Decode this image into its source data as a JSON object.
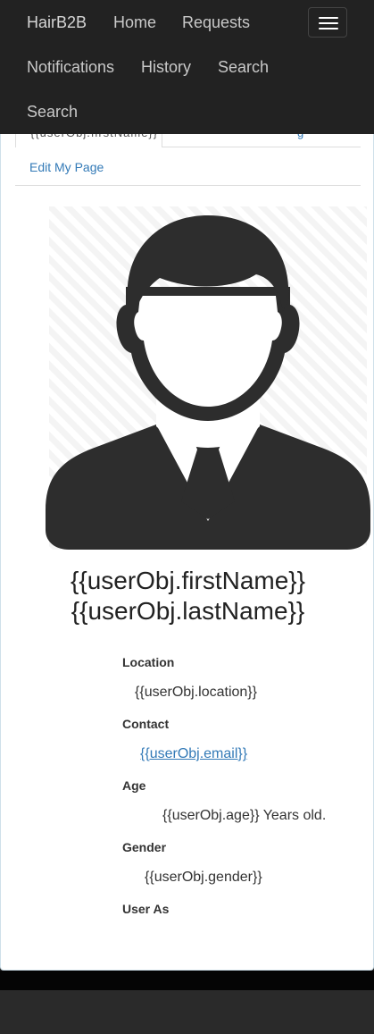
{
  "navbar": {
    "brand": "HairB2B",
    "items": [
      "Home",
      "Requests",
      "Notifications",
      "History",
      "Search",
      "Search"
    ]
  },
  "tabs": {
    "active_label": "{{userObj.firstName}}",
    "other_label": "g"
  },
  "edit_link": "Edit My Page",
  "profile": {
    "first_name": "{{userObj.firstName}}",
    "last_name": "{{userObj.lastName}}",
    "location_label": "Location",
    "location_value": "{{userObj.location}}",
    "contact_label": "Contact",
    "contact_value": "{{userObj.email}}",
    "age_label": "Age",
    "age_value": "{{userObj.age}} Years old.",
    "gender_label": "Gender",
    "gender_value": "{{userObj.gender}}",
    "user_as_label": "User As"
  },
  "colors": {
    "navbar_bg": "#222222",
    "link": "#337ab7",
    "avatar_fill": "#2d2d2d"
  },
  "icons": {
    "avatar": "user-silhouette-icon",
    "toggle": "hamburger-menu-icon"
  }
}
